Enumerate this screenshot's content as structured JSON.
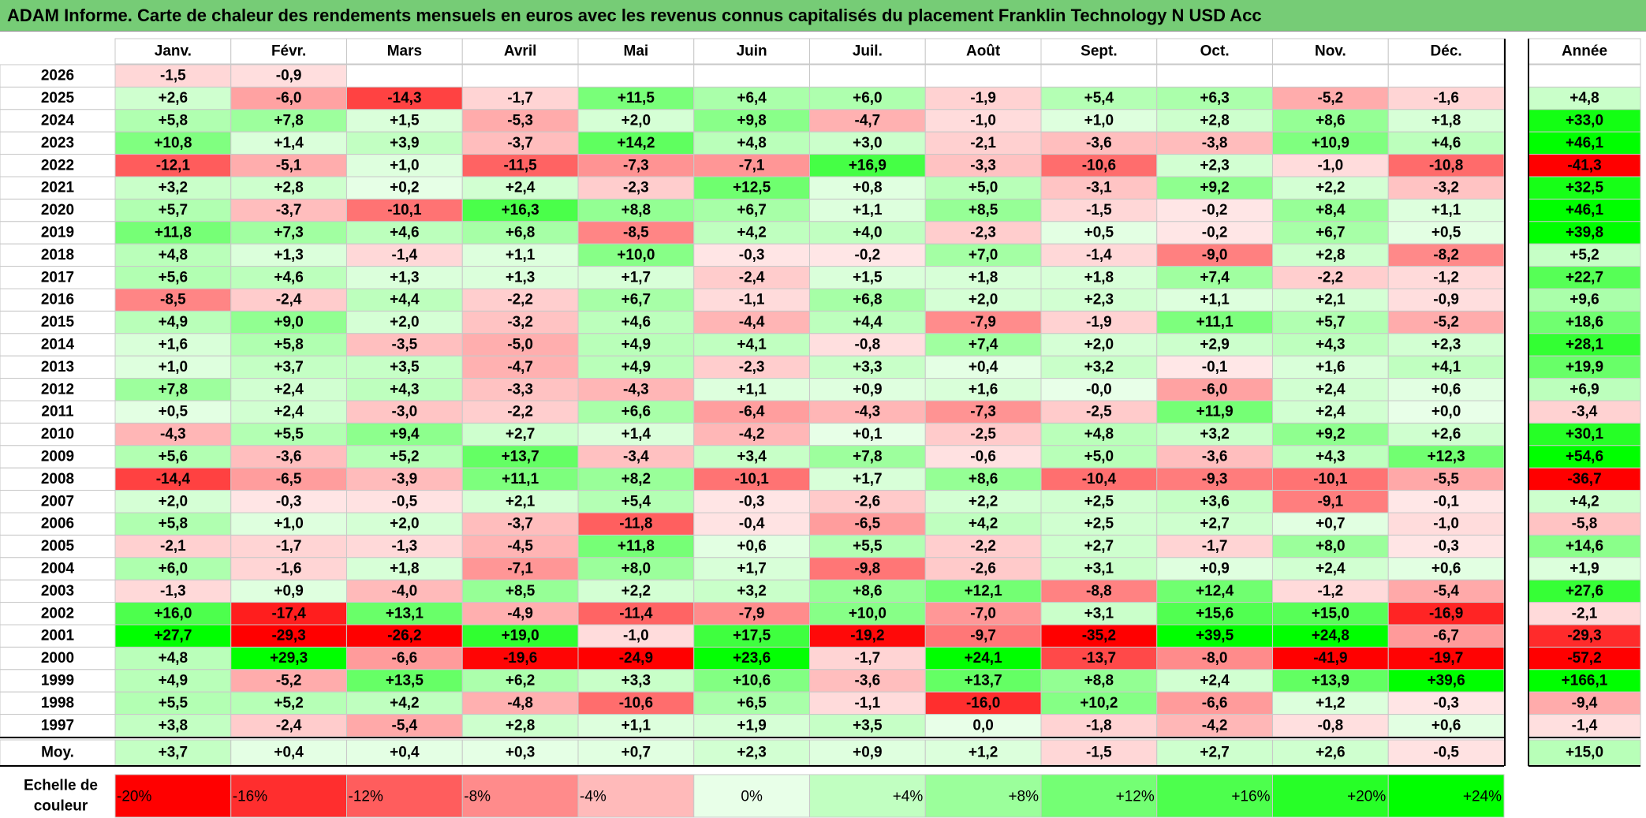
{
  "title": "ADAM Informe. Carte de chaleur des rendements mensuels en euros avec les revenus connus capitalisés du placement Franklin Technology N USD Acc",
  "chart_data": {
    "type": "heatmap",
    "months": [
      "Janv.",
      "Févr.",
      "Mars",
      "Avril",
      "Mai",
      "Juin",
      "Juil.",
      "Août",
      "Sept.",
      "Oct.",
      "Nov.",
      "Déc."
    ],
    "year_header": "Année",
    "rows": [
      {
        "year": "2026",
        "months": [
          "-1,5",
          "-0,9",
          "",
          "",
          "",
          "",
          "",
          "",
          "",
          "",
          "",
          ""
        ],
        "annual": ""
      },
      {
        "year": "2025",
        "months": [
          "+2,6",
          "-6,0",
          "-14,3",
          "-1,7",
          "+11,5",
          "+6,4",
          "+6,0",
          "-1,9",
          "+5,4",
          "+6,3",
          "-5,2",
          "-1,6"
        ],
        "annual": "+4,8"
      },
      {
        "year": "2024",
        "months": [
          "+5,8",
          "+7,8",
          "+1,5",
          "-5,3",
          "+2,0",
          "+9,8",
          "-4,7",
          "-1,0",
          "+1,0",
          "+2,8",
          "+8,6",
          "+1,8"
        ],
        "annual": "+33,0"
      },
      {
        "year": "2023",
        "months": [
          "+10,8",
          "+1,4",
          "+3,9",
          "-3,7",
          "+14,2",
          "+4,8",
          "+3,0",
          "-2,1",
          "-3,6",
          "-3,8",
          "+10,9",
          "+4,6"
        ],
        "annual": "+46,1"
      },
      {
        "year": "2022",
        "months": [
          "-12,1",
          "-5,1",
          "+1,0",
          "-11,5",
          "-7,3",
          "-7,1",
          "+16,9",
          "-3,3",
          "-10,6",
          "+2,3",
          "-1,0",
          "-10,8"
        ],
        "annual": "-41,3"
      },
      {
        "year": "2021",
        "months": [
          "+3,2",
          "+2,8",
          "+0,2",
          "+2,4",
          "-2,3",
          "+12,5",
          "+0,8",
          "+5,0",
          "-3,1",
          "+9,2",
          "+2,2",
          "-3,2"
        ],
        "annual": "+32,5"
      },
      {
        "year": "2020",
        "months": [
          "+5,7",
          "-3,7",
          "-10,1",
          "+16,3",
          "+8,8",
          "+6,7",
          "+1,1",
          "+8,5",
          "-1,5",
          "-0,2",
          "+8,4",
          "+1,1"
        ],
        "annual": "+46,1"
      },
      {
        "year": "2019",
        "months": [
          "+11,8",
          "+7,3",
          "+4,6",
          "+6,8",
          "-8,5",
          "+4,2",
          "+4,0",
          "-2,3",
          "+0,5",
          "-0,2",
          "+6,7",
          "+0,5"
        ],
        "annual": "+39,8"
      },
      {
        "year": "2018",
        "months": [
          "+4,8",
          "+1,3",
          "-1,4",
          "+1,1",
          "+10,0",
          "-0,3",
          "-0,2",
          "+7,0",
          "-1,4",
          "-9,0",
          "+2,8",
          "-8,2"
        ],
        "annual": "+5,2"
      },
      {
        "year": "2017",
        "months": [
          "+5,6",
          "+4,6",
          "+1,3",
          "+1,3",
          "+1,7",
          "-2,4",
          "+1,5",
          "+1,8",
          "+1,8",
          "+7,4",
          "-2,2",
          "-1,2"
        ],
        "annual": "+22,7"
      },
      {
        "year": "2016",
        "months": [
          "-8,5",
          "-2,4",
          "+4,4",
          "-2,2",
          "+6,7",
          "-1,1",
          "+6,8",
          "+2,0",
          "+2,3",
          "+1,1",
          "+2,1",
          "-0,9"
        ],
        "annual": "+9,6"
      },
      {
        "year": "2015",
        "months": [
          "+4,9",
          "+9,0",
          "+2,0",
          "-3,2",
          "+4,6",
          "-4,4",
          "+4,4",
          "-7,9",
          "-1,9",
          "+11,1",
          "+5,7",
          "-5,2"
        ],
        "annual": "+18,6"
      },
      {
        "year": "2014",
        "months": [
          "+1,6",
          "+5,8",
          "-3,5",
          "-5,0",
          "+4,9",
          "+4,1",
          "-0,8",
          "+7,4",
          "+2,0",
          "+2,9",
          "+4,3",
          "+2,3"
        ],
        "annual": "+28,1"
      },
      {
        "year": "2013",
        "months": [
          "+1,0",
          "+3,7",
          "+3,5",
          "-4,7",
          "+4,9",
          "-2,3",
          "+3,3",
          "+0,4",
          "+3,2",
          "-0,1",
          "+1,6",
          "+4,1"
        ],
        "annual": "+19,9"
      },
      {
        "year": "2012",
        "months": [
          "+7,8",
          "+2,4",
          "+4,3",
          "-3,3",
          "-4,3",
          "+1,1",
          "+0,9",
          "+1,6",
          "-0,0",
          "-6,0",
          "+2,4",
          "+0,6"
        ],
        "annual": "+6,9"
      },
      {
        "year": "2011",
        "months": [
          "+0,5",
          "+2,4",
          "-3,0",
          "-2,2",
          "+6,6",
          "-6,4",
          "-4,3",
          "-7,3",
          "-2,5",
          "+11,9",
          "+2,4",
          "+0,0"
        ],
        "annual": "-3,4"
      },
      {
        "year": "2010",
        "months": [
          "-4,3",
          "+5,5",
          "+9,4",
          "+2,7",
          "+1,4",
          "-4,2",
          "+0,1",
          "-2,5",
          "+4,8",
          "+3,2",
          "+9,2",
          "+2,6"
        ],
        "annual": "+30,1"
      },
      {
        "year": "2009",
        "months": [
          "+5,6",
          "-3,6",
          "+5,2",
          "+13,7",
          "-3,4",
          "+3,4",
          "+7,8",
          "-0,6",
          "+5,0",
          "-3,6",
          "+4,3",
          "+12,3"
        ],
        "annual": "+54,6"
      },
      {
        "year": "2008",
        "months": [
          "-14,4",
          "-6,5",
          "-3,9",
          "+11,1",
          "+8,2",
          "-10,1",
          "+1,7",
          "+8,6",
          "-10,4",
          "-9,3",
          "-10,1",
          "-5,5"
        ],
        "annual": "-36,7"
      },
      {
        "year": "2007",
        "months": [
          "+2,0",
          "-0,3",
          "-0,5",
          "+2,1",
          "+5,4",
          "-0,3",
          "-2,6",
          "+2,2",
          "+2,5",
          "+3,6",
          "-9,1",
          "-0,1"
        ],
        "annual": "+4,2"
      },
      {
        "year": "2006",
        "months": [
          "+5,8",
          "+1,0",
          "+2,0",
          "-3,7",
          "-11,8",
          "-0,4",
          "-6,5",
          "+4,2",
          "+2,5",
          "+2,7",
          "+0,7",
          "-1,0"
        ],
        "annual": "-5,8"
      },
      {
        "year": "2005",
        "months": [
          "-2,1",
          "-1,7",
          "-1,3",
          "-4,5",
          "+11,8",
          "+0,6",
          "+5,5",
          "-2,2",
          "+2,7",
          "-1,7",
          "+8,0",
          "-0,3"
        ],
        "annual": "+14,6"
      },
      {
        "year": "2004",
        "months": [
          "+6,0",
          "-1,6",
          "+1,8",
          "-7,1",
          "+8,0",
          "+1,7",
          "-9,8",
          "-2,6",
          "+3,1",
          "+0,9",
          "+2,4",
          "+0,6"
        ],
        "annual": "+1,9"
      },
      {
        "year": "2003",
        "months": [
          "-1,3",
          "+0,9",
          "-4,0",
          "+8,5",
          "+2,2",
          "+3,2",
          "+8,6",
          "+12,1",
          "-8,8",
          "+12,4",
          "-1,2",
          "-5,4"
        ],
        "annual": "+27,6"
      },
      {
        "year": "2002",
        "months": [
          "+16,0",
          "-17,4",
          "+13,1",
          "-4,9",
          "-11,4",
          "-7,9",
          "+10,0",
          "-7,0",
          "+3,1",
          "+15,6",
          "+15,0",
          "-16,9"
        ],
        "annual": "-2,1"
      },
      {
        "year": "2001",
        "months": [
          "+27,7",
          "-29,3",
          "-26,2",
          "+19,0",
          "-1,0",
          "+17,5",
          "-19,2",
          "-9,7",
          "-35,2",
          "+39,5",
          "+24,8",
          "-6,7"
        ],
        "annual": "-29,3"
      },
      {
        "year": "2000",
        "months": [
          "+4,8",
          "+29,3",
          "-6,6",
          "-19,6",
          "-24,9",
          "+23,6",
          "-1,7",
          "+24,1",
          "-13,7",
          "-8,0",
          "-41,9",
          "-19,7"
        ],
        "annual": "-57,2"
      },
      {
        "year": "1999",
        "months": [
          "+4,9",
          "-5,2",
          "+13,5",
          "+6,2",
          "+3,3",
          "+10,6",
          "-3,6",
          "+13,7",
          "+8,8",
          "+2,4",
          "+13,9",
          "+39,6"
        ],
        "annual": "+166,1"
      },
      {
        "year": "1998",
        "months": [
          "+5,5",
          "+5,2",
          "+4,2",
          "-4,8",
          "-10,6",
          "+6,5",
          "-1,1",
          "-16,0",
          "+10,2",
          "-6,6",
          "+1,2",
          "-0,3"
        ],
        "annual": "-9,4"
      },
      {
        "year": "1997",
        "months": [
          "+3,8",
          "-2,4",
          "-5,4",
          "+2,8",
          "+1,1",
          "+1,9",
          "+3,5",
          "0,0",
          "-1,8",
          "-4,2",
          "-0,8",
          "+0,6"
        ],
        "annual": "-1,4"
      }
    ],
    "average_row": {
      "label": "Moy.",
      "months": [
        "+3,7",
        "+0,4",
        "+0,4",
        "+0,3",
        "+0,7",
        "+2,3",
        "+0,9",
        "+1,2",
        "-1,5",
        "+2,7",
        "+2,6",
        "-0,5"
      ],
      "annual": "+15,0"
    },
    "color_scale": {
      "label_line1": "Echelle de",
      "label_line2": "couleur",
      "stops": [
        "-20%",
        "-16%",
        "-12%",
        "-8%",
        "-4%",
        "0%",
        "+4%",
        "+8%",
        "+12%",
        "+16%",
        "+20%",
        "+24%"
      ],
      "stop_values": [
        -20,
        -16,
        -12,
        -8,
        -4,
        0,
        4,
        8,
        12,
        16,
        20,
        24
      ]
    },
    "colors": {
      "negative_max": "#ff0000",
      "neutral": "#ffffff",
      "positive_max": "#00ff00",
      "title_bg": "#76cc76",
      "grid": "#c8c8c8"
    }
  }
}
